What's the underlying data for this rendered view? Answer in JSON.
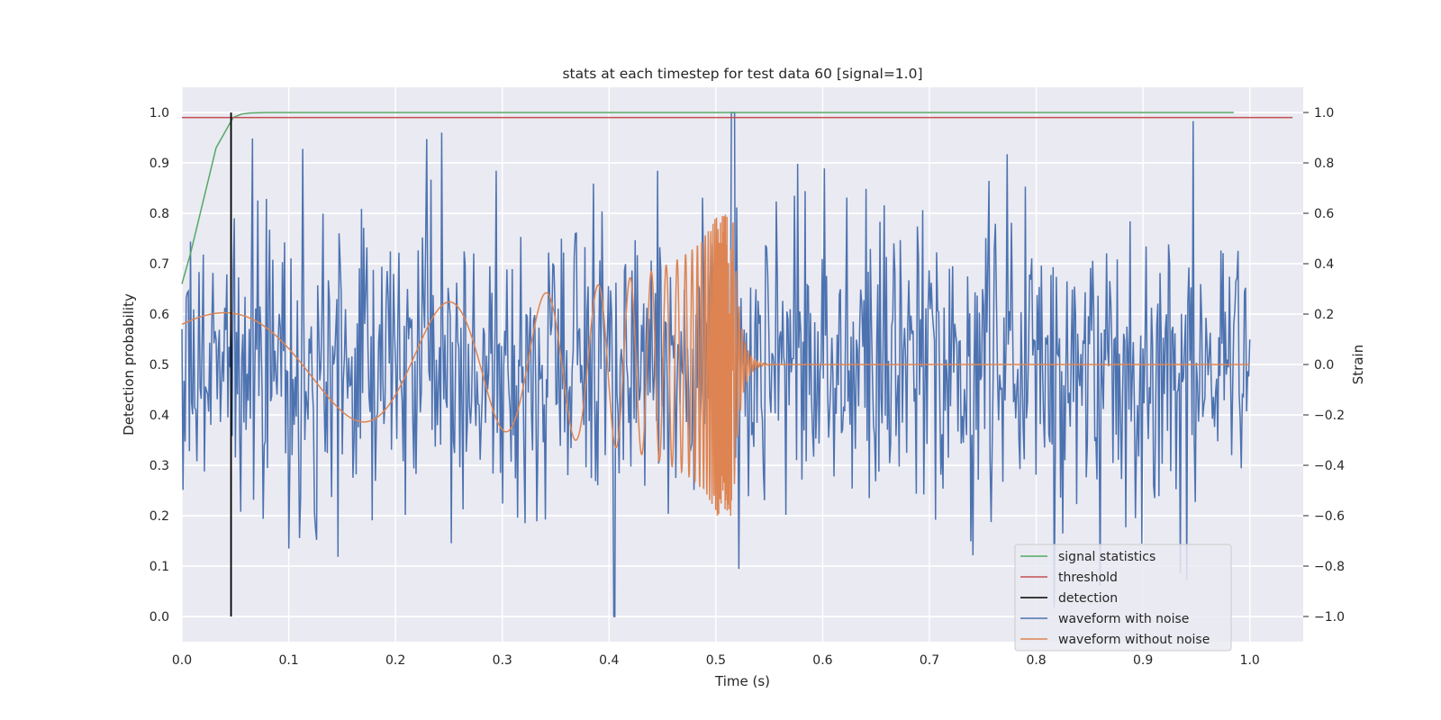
{
  "chart_data": {
    "type": "line",
    "title": "stats at each timestep for test data 60 [signal=1.0]",
    "xlabel": "Time (s)",
    "ylabel_left": "Detection probability",
    "ylabel_right": "Strain",
    "xlim": [
      0.0,
      1.05
    ],
    "ylim_left": [
      -0.05,
      1.05
    ],
    "ylim_right": [
      -1.1,
      1.1
    ],
    "x_ticks": [
      0.0,
      0.1,
      0.2,
      0.3,
      0.4,
      0.5,
      0.6,
      0.7,
      0.8,
      0.9,
      1.0
    ],
    "x_tick_labels": [
      "0.0",
      "0.1",
      "0.2",
      "0.3",
      "0.4",
      "0.5",
      "0.6",
      "0.7",
      "0.8",
      "0.9",
      "1.0"
    ],
    "y_left_ticks": [
      0.0,
      0.1,
      0.2,
      0.3,
      0.4,
      0.5,
      0.6,
      0.7,
      0.8,
      0.9,
      1.0
    ],
    "y_left_tick_labels": [
      "0.0",
      "0.1",
      "0.2",
      "0.3",
      "0.4",
      "0.5",
      "0.6",
      "0.7",
      "0.8",
      "0.9",
      "1.0"
    ],
    "y_right_ticks": [
      -1.0,
      -0.8,
      -0.6,
      -0.4,
      -0.2,
      0.0,
      0.2,
      0.4,
      0.6,
      0.8,
      1.0
    ],
    "y_right_tick_labels": [
      "−1.0",
      "−0.8",
      "−0.6",
      "−0.4",
      "−0.2",
      "0.0",
      "0.2",
      "0.4",
      "0.6",
      "0.8",
      "1.0"
    ],
    "grid": true,
    "legend_position": "lower-right",
    "colors": {
      "background": "#eaeaf2",
      "grid": "#ffffff",
      "signal_statistics": "#55a868",
      "threshold": "#c44e52",
      "detection": "#000000",
      "waveform_with_noise": "#4c72b0",
      "waveform_without_noise": "#dd8452"
    },
    "series": [
      {
        "name": "signal statistics",
        "axis": "left",
        "x": [
          0.0,
          0.008,
          0.016,
          0.024,
          0.032,
          0.04,
          0.048,
          0.056,
          0.064,
          0.08,
          0.1,
          0.2,
          0.5,
          0.985
        ],
        "y": [
          0.66,
          0.72,
          0.79,
          0.86,
          0.93,
          0.96,
          0.99,
          0.997,
          0.999,
          1.0,
          1.0,
          1.0,
          1.0,
          1.0
        ]
      },
      {
        "name": "threshold",
        "axis": "left",
        "x": [
          0.0,
          1.04
        ],
        "y": [
          0.99,
          0.99
        ]
      },
      {
        "name": "detection",
        "axis": "left",
        "x": [
          0.046,
          0.046
        ],
        "y": [
          0.0,
          1.0
        ]
      },
      {
        "name": "waveform with noise",
        "axis": "right",
        "x_range": [
          0.0,
          1.0
        ],
        "y_range_observed": [
          -1.0,
          1.0
        ]
      },
      {
        "name": "waveform without noise",
        "axis": "right",
        "x_range": [
          0.0,
          1.0
        ],
        "chirp_merger_time": 0.516,
        "amplitude_start": 0.2,
        "amplitude_peak": 0.6
      }
    ]
  },
  "legend": {
    "items": [
      {
        "label": "signal statistics",
        "color": "#55a868"
      },
      {
        "label": "threshold",
        "color": "#c44e52"
      },
      {
        "label": "detection",
        "color": "#000000"
      },
      {
        "label": "waveform with noise",
        "color": "#4c72b0"
      },
      {
        "label": "waveform without noise",
        "color": "#dd8452"
      }
    ]
  }
}
